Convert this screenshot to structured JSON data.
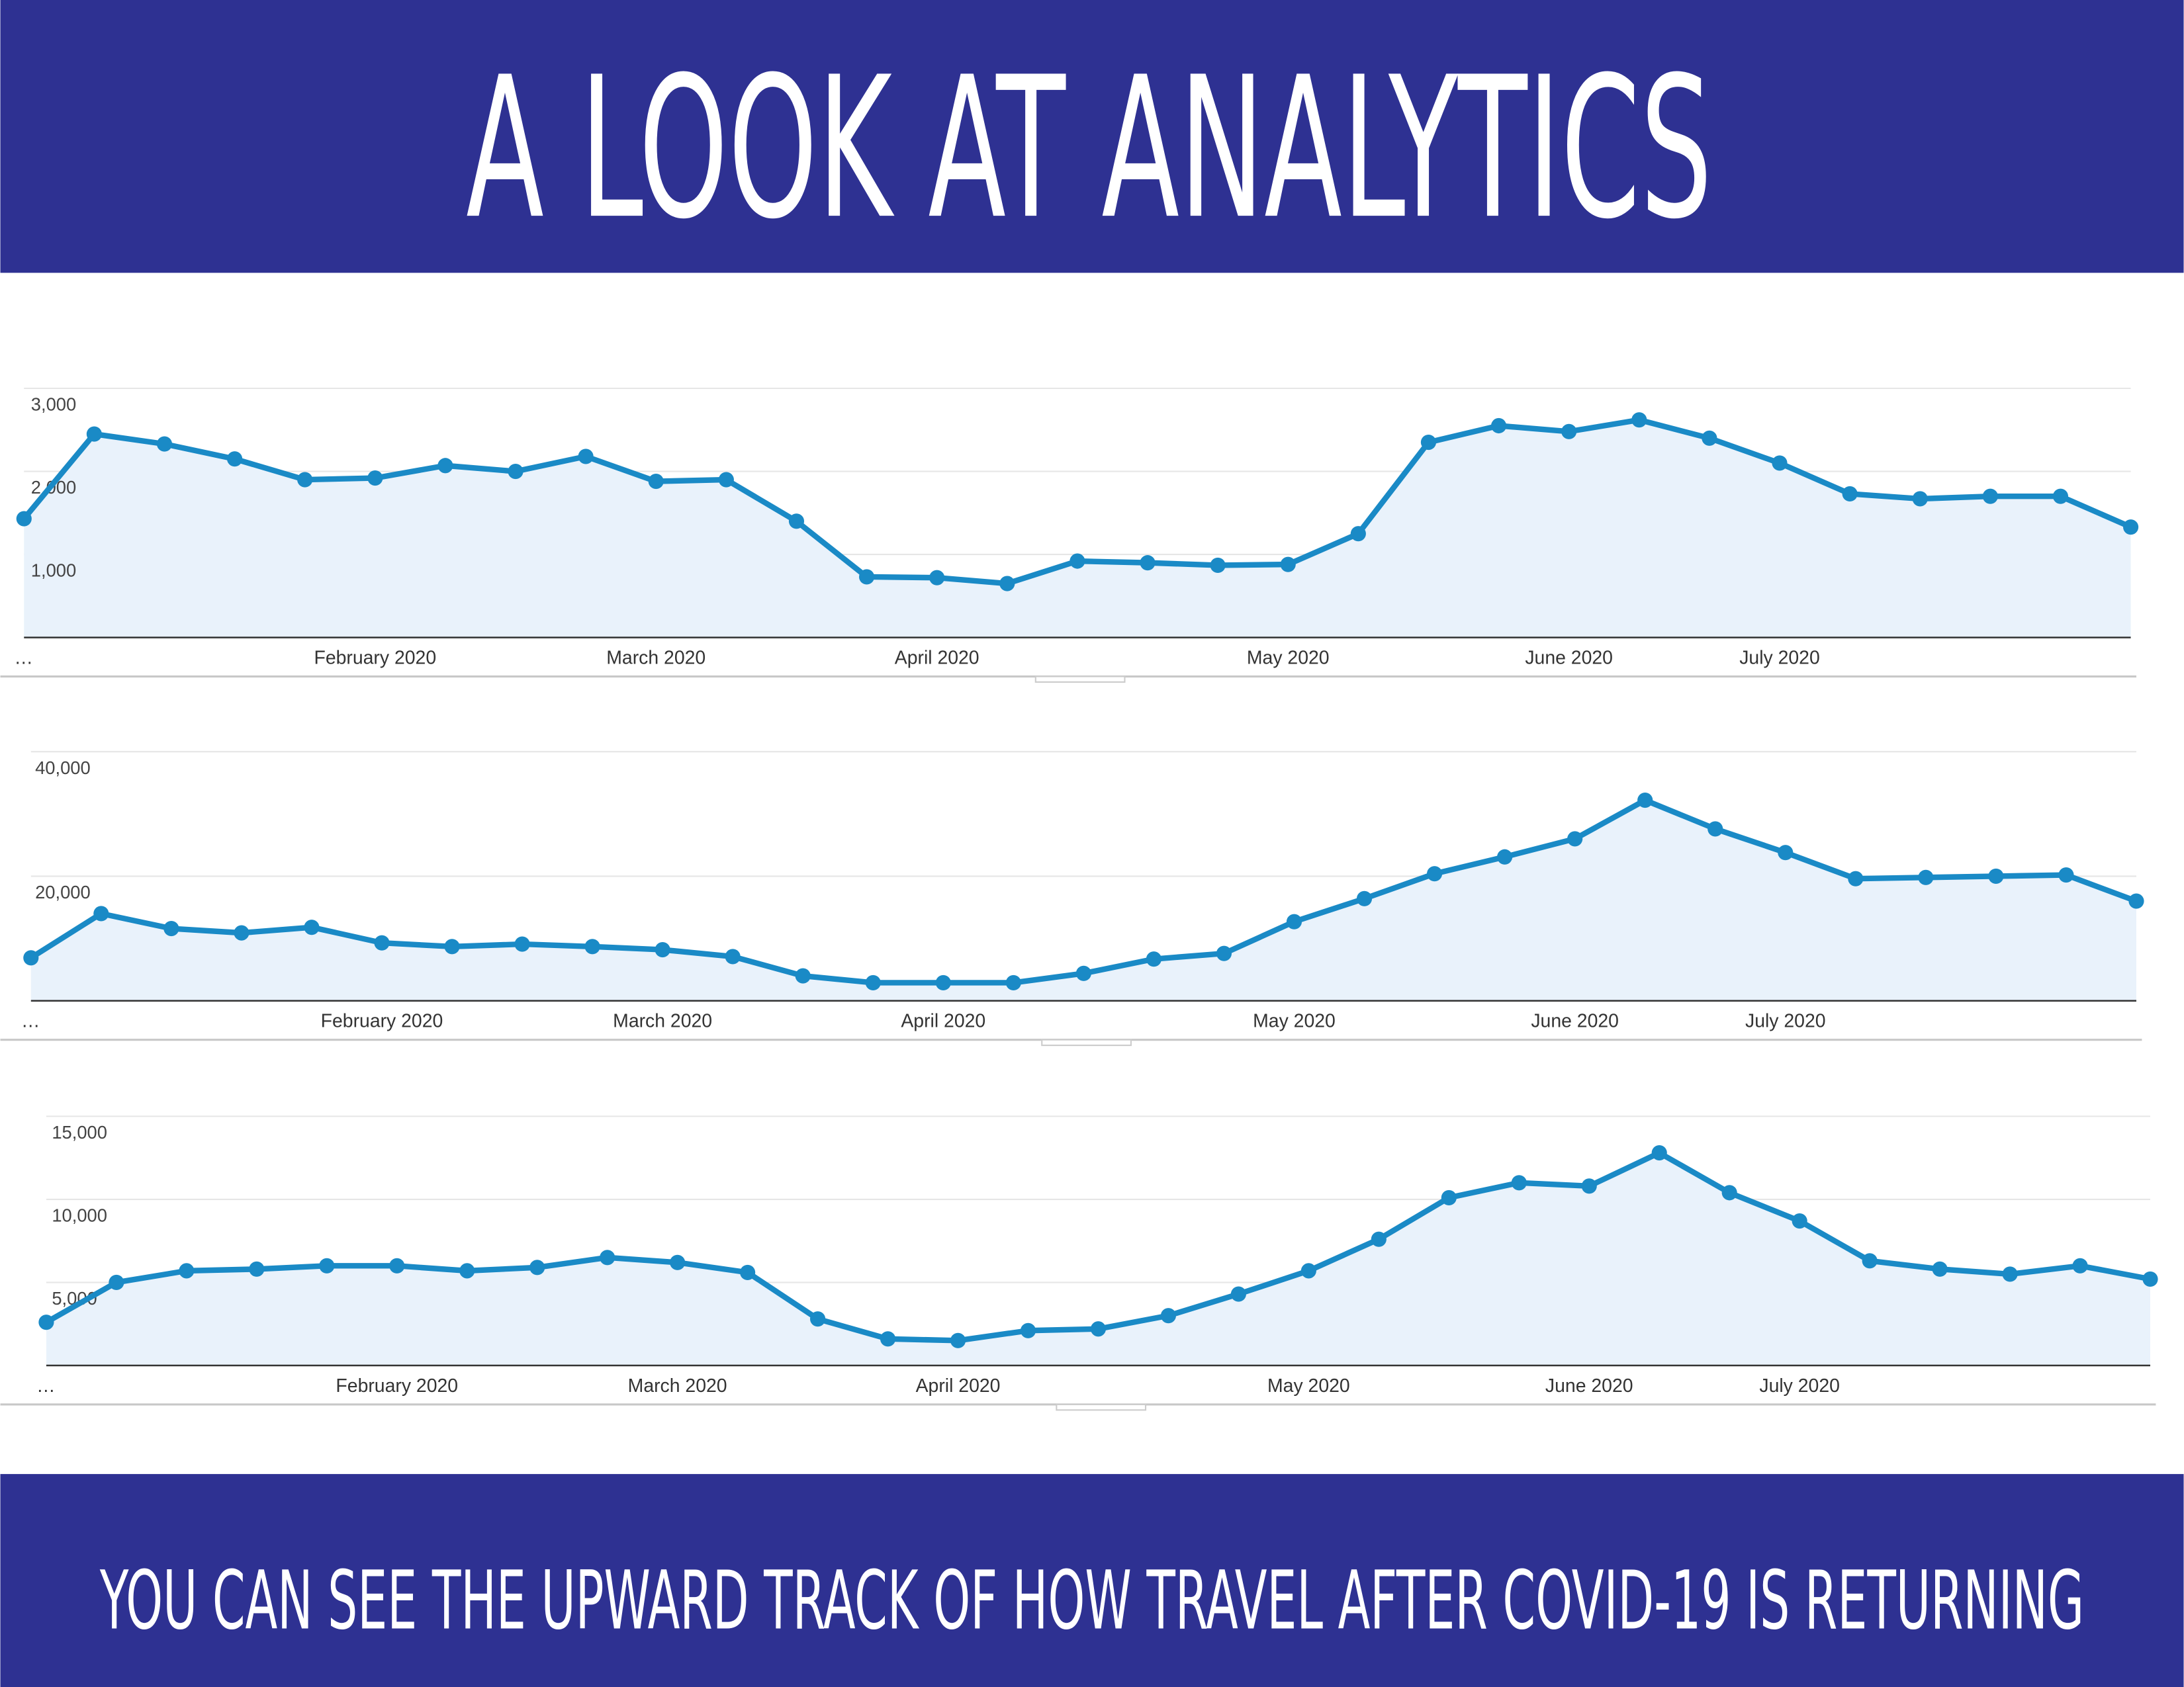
{
  "header": {
    "title": "A LOOK AT ANALYTICS"
  },
  "chart_data": [
    {
      "type": "line",
      "color": "#1a8ac6",
      "fill": "#e9f2fb",
      "grid": true,
      "categories": [
        "…",
        null,
        null,
        null,
        null,
        "February 2020",
        null,
        null,
        null,
        "March 2020",
        null,
        null,
        null,
        "April 2020",
        null,
        null,
        null,
        null,
        "May 2020",
        null,
        null,
        null,
        "June 2020",
        null,
        null,
        "July 2020",
        null,
        null,
        null,
        null,
        null
      ],
      "values": [
        1430,
        2450,
        2330,
        2150,
        1900,
        1920,
        2070,
        2000,
        2180,
        1880,
        1900,
        1400,
        730,
        720,
        650,
        920,
        900,
        870,
        880,
        1250,
        2350,
        2550,
        2480,
        2620,
        2400,
        2100,
        1730,
        1670,
        1700,
        1700,
        1330
      ],
      "ylim": [
        0,
        3000
      ],
      "yticks": [
        {
          "value": 1000,
          "label": "1,000"
        },
        {
          "value": 2000,
          "label": "2,000"
        },
        {
          "value": 3000,
          "label": "3,000"
        }
      ]
    },
    {
      "type": "line",
      "color": "#1a8ac6",
      "fill": "#e9f2fb",
      "grid": true,
      "categories": [
        "…",
        null,
        null,
        null,
        null,
        "February 2020",
        null,
        null,
        null,
        "March 2020",
        null,
        null,
        null,
        "April 2020",
        null,
        null,
        null,
        null,
        "May 2020",
        null,
        null,
        null,
        "June 2020",
        null,
        null,
        "July 2020",
        null,
        null,
        null,
        null,
        null
      ],
      "values": [
        6900,
        14000,
        11600,
        10900,
        11800,
        9300,
        8700,
        9100,
        8700,
        8200,
        7100,
        4000,
        2900,
        2900,
        2900,
        4400,
        6700,
        7600,
        12700,
        16400,
        20400,
        23100,
        26000,
        32200,
        27600,
        23800,
        19600,
        19800,
        20000,
        20200,
        16000
      ],
      "ylim": [
        0,
        40000
      ],
      "yticks": [
        {
          "value": 20000,
          "label": "20,000"
        },
        {
          "value": 40000,
          "label": "40,000"
        }
      ]
    },
    {
      "type": "line",
      "color": "#1a8ac6",
      "fill": "#e9f2fb",
      "grid": true,
      "categories": [
        "…",
        null,
        null,
        null,
        null,
        "February 2020",
        null,
        null,
        null,
        "March 2020",
        null,
        null,
        null,
        "April 2020",
        null,
        null,
        null,
        null,
        "May 2020",
        null,
        null,
        null,
        "June 2020",
        null,
        null,
        "July 2020",
        null,
        null,
        null,
        null,
        null
      ],
      "values": [
        2600,
        5000,
        5700,
        5800,
        6000,
        6000,
        5700,
        5900,
        6500,
        6200,
        5600,
        2800,
        1600,
        1500,
        2100,
        2200,
        3000,
        4300,
        5700,
        7600,
        10100,
        11000,
        10800,
        12800,
        10400,
        8700,
        6300,
        5800,
        5500,
        6000,
        5200
      ],
      "ylim": [
        0,
        15000
      ],
      "yticks": [
        {
          "value": 5000,
          "label": "5,000"
        },
        {
          "value": 10000,
          "label": "10,000"
        },
        {
          "value": 15000,
          "label": "15,000"
        }
      ]
    }
  ],
  "footer": {
    "text": "YOU CAN SEE THE UPWARD TRACK OF HOW TRAVEL AFTER COVID-19 IS RETURNING"
  }
}
